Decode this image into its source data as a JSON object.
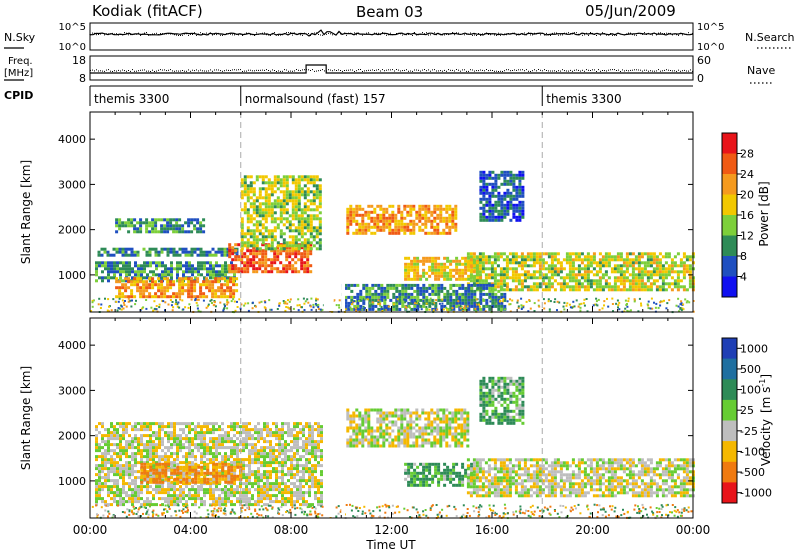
{
  "header": {
    "station": "Kodiak (fitACF)",
    "beam": "Beam 03",
    "date": "05/Jun/2009"
  },
  "summary_panels": {
    "nsky_label": "N.Sky",
    "nsearch_label": "N.Search",
    "nsky_ticks": [
      "10^5",
      "10^0"
    ],
    "nsearch_ticks": [
      "10^5",
      "10^0"
    ],
    "freq_label_line1": "Freq.",
    "freq_label_line2": "[MHz]",
    "freq_ticks": [
      "18",
      "8"
    ],
    "nave_label": "Nave",
    "nave_ticks": [
      "60",
      "0"
    ],
    "cpid_label": "CPID",
    "cpid_segments": [
      {
        "label": "themis 3300",
        "start_hour": 0
      },
      {
        "label": "normalsound (fast) 157",
        "start_hour": 6
      },
      {
        "label": "themis 3300",
        "start_hour": 18
      }
    ]
  },
  "colorbars": {
    "power": {
      "label": "Power [dB]",
      "ticks": [
        "28",
        "24",
        "20",
        "16",
        "12",
        "8",
        "4"
      ],
      "colors": [
        "#e8141a",
        "#f05a14",
        "#f59a1e",
        "#f2c800",
        "#7dcf3a",
        "#2e8b57",
        "#1f4fc0",
        "#1010f0"
      ]
    },
    "velocity": {
      "label": "Velocity",
      "unit": "[m s",
      "unit_sup": "-1",
      "unit_close": "]",
      "ticks": [
        "1000",
        "500",
        "100",
        "25",
        "-25",
        "-100",
        "-500",
        "-1000"
      ],
      "colors": [
        "#1f3fb5",
        "#1f6fa0",
        "#2e8b57",
        "#66cc33",
        "#bebebe",
        "#f5b800",
        "#f07a10",
        "#e8141a"
      ]
    }
  },
  "chart_data": {
    "type": "heatmap",
    "xlabel": "Time UT",
    "x_ticks": [
      "00:00",
      "04:00",
      "08:00",
      "12:00",
      "16:00",
      "20:00",
      "00:00"
    ],
    "x_range_hours": [
      0,
      24
    ],
    "y_ticks": [
      1000,
      2000,
      3000,
      4000
    ],
    "y_range_km": [
      180,
      4600
    ],
    "panels": [
      {
        "name": "power",
        "ylabel": "Slant Range [km]"
      },
      {
        "name": "velocity",
        "ylabel": "Slant Range [km]"
      }
    ],
    "mode_change_hours": [
      6,
      18
    ],
    "data_gaps_hours": [
      [
        9.3,
        9.7
      ],
      [
        10.0,
        10.15
      ]
    ],
    "features": [
      {
        "panel": "power",
        "t0": 0.2,
        "t1": 5.8,
        "r0": 850,
        "r1": 1300,
        "value_db": 10
      },
      {
        "panel": "power",
        "t0": 1.0,
        "t1": 4.5,
        "r0": 1950,
        "r1": 2250,
        "value_db": 10
      },
      {
        "panel": "power",
        "t0": 0.3,
        "t1": 5.8,
        "r0": 1450,
        "r1": 1600,
        "value_db": 9
      },
      {
        "panel": "power",
        "t0": 1.0,
        "t1": 5.8,
        "r0": 500,
        "r1": 950,
        "value_db": 22
      },
      {
        "panel": "power",
        "t0": 5.5,
        "t1": 8.8,
        "r0": 1100,
        "r1": 1700,
        "value_db": 26
      },
      {
        "panel": "power",
        "t0": 6.0,
        "t1": 9.2,
        "r0": 1600,
        "r1": 3200,
        "value_db": 15
      },
      {
        "panel": "power",
        "t0": 10.2,
        "t1": 14.5,
        "r0": 1900,
        "r1": 2550,
        "value_db": 22
      },
      {
        "panel": "power",
        "t0": 12.5,
        "t1": 15.5,
        "r0": 900,
        "r1": 1400,
        "value_db": 19
      },
      {
        "panel": "power",
        "t0": 15.0,
        "t1": 24.0,
        "r0": 700,
        "r1": 1500,
        "value_db": 16
      },
      {
        "panel": "power",
        "t0": 10.0,
        "t1": 16.5,
        "r0": 250,
        "r1": 800,
        "value_db": 9
      },
      {
        "panel": "power",
        "t0": 15.5,
        "t1": 17.2,
        "r0": 2200,
        "r1": 3300,
        "value_db": 7
      },
      {
        "panel": "velocity",
        "t0": 0.2,
        "t1": 9.2,
        "r0": 500,
        "r1": 2300,
        "value_ms": 0
      },
      {
        "panel": "velocity",
        "t0": 2.0,
        "t1": 6.0,
        "r0": 1000,
        "r1": 1400,
        "value_ms": -80
      },
      {
        "panel": "velocity",
        "t0": 10.2,
        "t1": 15.0,
        "r0": 1800,
        "r1": 2600,
        "value_ms": 0
      },
      {
        "panel": "velocity",
        "t0": 12.5,
        "t1": 15.2,
        "r0": 900,
        "r1": 1400,
        "value_ms": 80
      },
      {
        "panel": "velocity",
        "t0": 15.0,
        "t1": 24.0,
        "r0": 700,
        "r1": 1500,
        "value_ms": 0
      },
      {
        "panel": "velocity",
        "t0": 15.5,
        "t1": 17.2,
        "r0": 2300,
        "r1": 3300,
        "value_ms": 60
      }
    ]
  }
}
